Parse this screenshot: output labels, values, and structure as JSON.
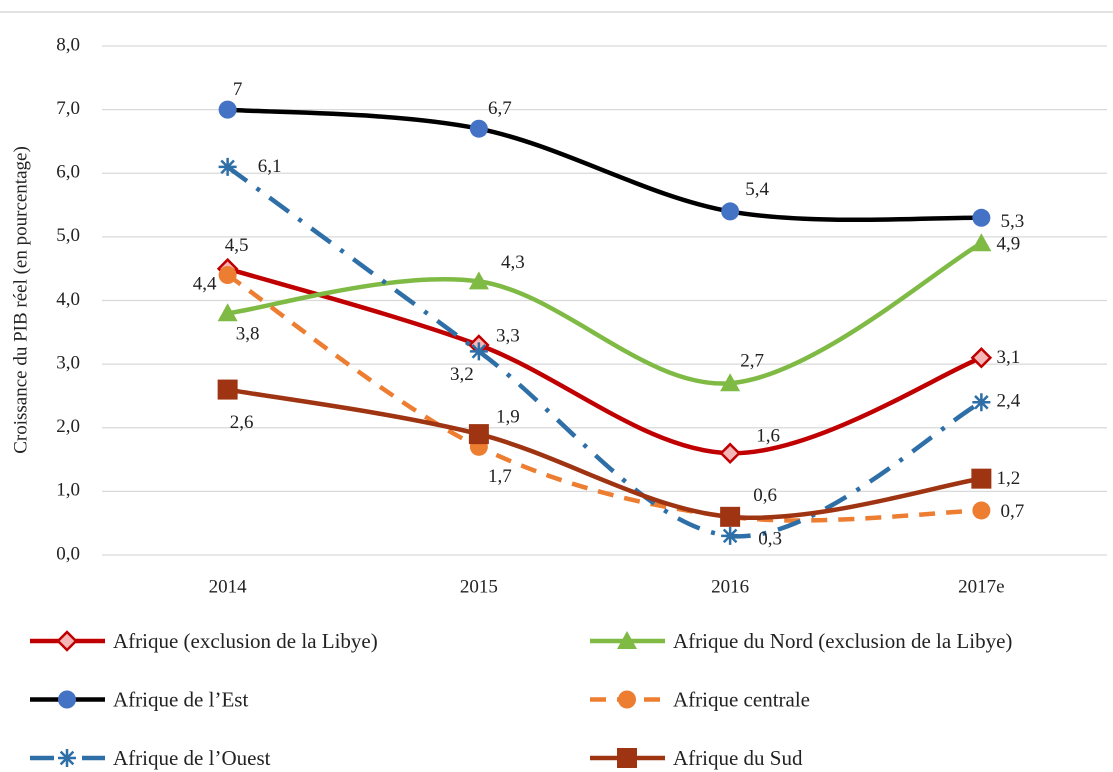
{
  "chart_data": {
    "type": "line",
    "y_label": "Croissance du PIB réel (en pourcentage)",
    "categories": [
      "2014",
      "2015",
      "2016",
      "2017e"
    ],
    "ylim": [
      0,
      8
    ],
    "yticks": [
      {
        "value": 0,
        "label": "0,0"
      },
      {
        "value": 1,
        "label": "1,0"
      },
      {
        "value": 2,
        "label": "2,0"
      },
      {
        "value": 3,
        "label": "3,0"
      },
      {
        "value": 4,
        "label": "4,0"
      },
      {
        "value": 5,
        "label": "5,0"
      },
      {
        "value": 6,
        "label": "6,0"
      },
      {
        "value": 7,
        "label": "7,0"
      },
      {
        "value": 8,
        "label": "8,0"
      }
    ],
    "grid": true,
    "legend": "bottom",
    "smooth": true,
    "series": [
      {
        "name": "Afrique (exclusion de la Libye)",
        "color": "#c00000",
        "marker": "diamond",
        "marker_color": "#f4b6b6",
        "dash": "solid",
        "values": [
          4.5,
          3.3,
          1.6,
          3.1
        ],
        "value_labels": [
          "4,5",
          "3,3",
          "1,6",
          "3,1"
        ]
      },
      {
        "name": "Afrique du Nord (exclusion de la Libye)",
        "color": "#7fba45",
        "marker": "triangle",
        "marker_color": "#7fba45",
        "dash": "solid",
        "values": [
          3.8,
          4.3,
          2.7,
          4.9
        ],
        "value_labels": [
          "3,8",
          "4,3",
          "2,7",
          "4,9"
        ]
      },
      {
        "name": "Afrique de l’Est",
        "color": "#000000",
        "marker": "circle",
        "marker_color": "#4472c4",
        "dash": "solid",
        "values": [
          7,
          6.7,
          5.4,
          5.3
        ],
        "value_labels": [
          "7",
          "6,7",
          "5,4",
          "5,3"
        ]
      },
      {
        "name": "Afrique centrale",
        "color": "#ed7d31",
        "marker": "circle",
        "marker_color": "#ed7d31",
        "dash": "dashed",
        "values": [
          4.4,
          1.7,
          0.6,
          0.7
        ],
        "value_labels": [
          "4,4",
          "1,7",
          null,
          "0,7"
        ]
      },
      {
        "name": "Afrique de l’Ouest",
        "color": "#2e6fa7",
        "marker": "star",
        "marker_color": "#2e6fa7",
        "dash": "dashdot",
        "values": [
          6.1,
          3.2,
          0.3,
          2.4
        ],
        "value_labels": [
          "6,1",
          "3,2",
          "0,3",
          "2,4"
        ]
      },
      {
        "name": "Afrique du Sud",
        "color": "#9e3412",
        "marker": "square",
        "marker_color": "#9e3412",
        "dash": "solid",
        "values": [
          2.6,
          1.9,
          0.6,
          1.2
        ],
        "value_labels": [
          "2,6",
          "1,9",
          "0,6",
          "1,2"
        ]
      }
    ]
  }
}
